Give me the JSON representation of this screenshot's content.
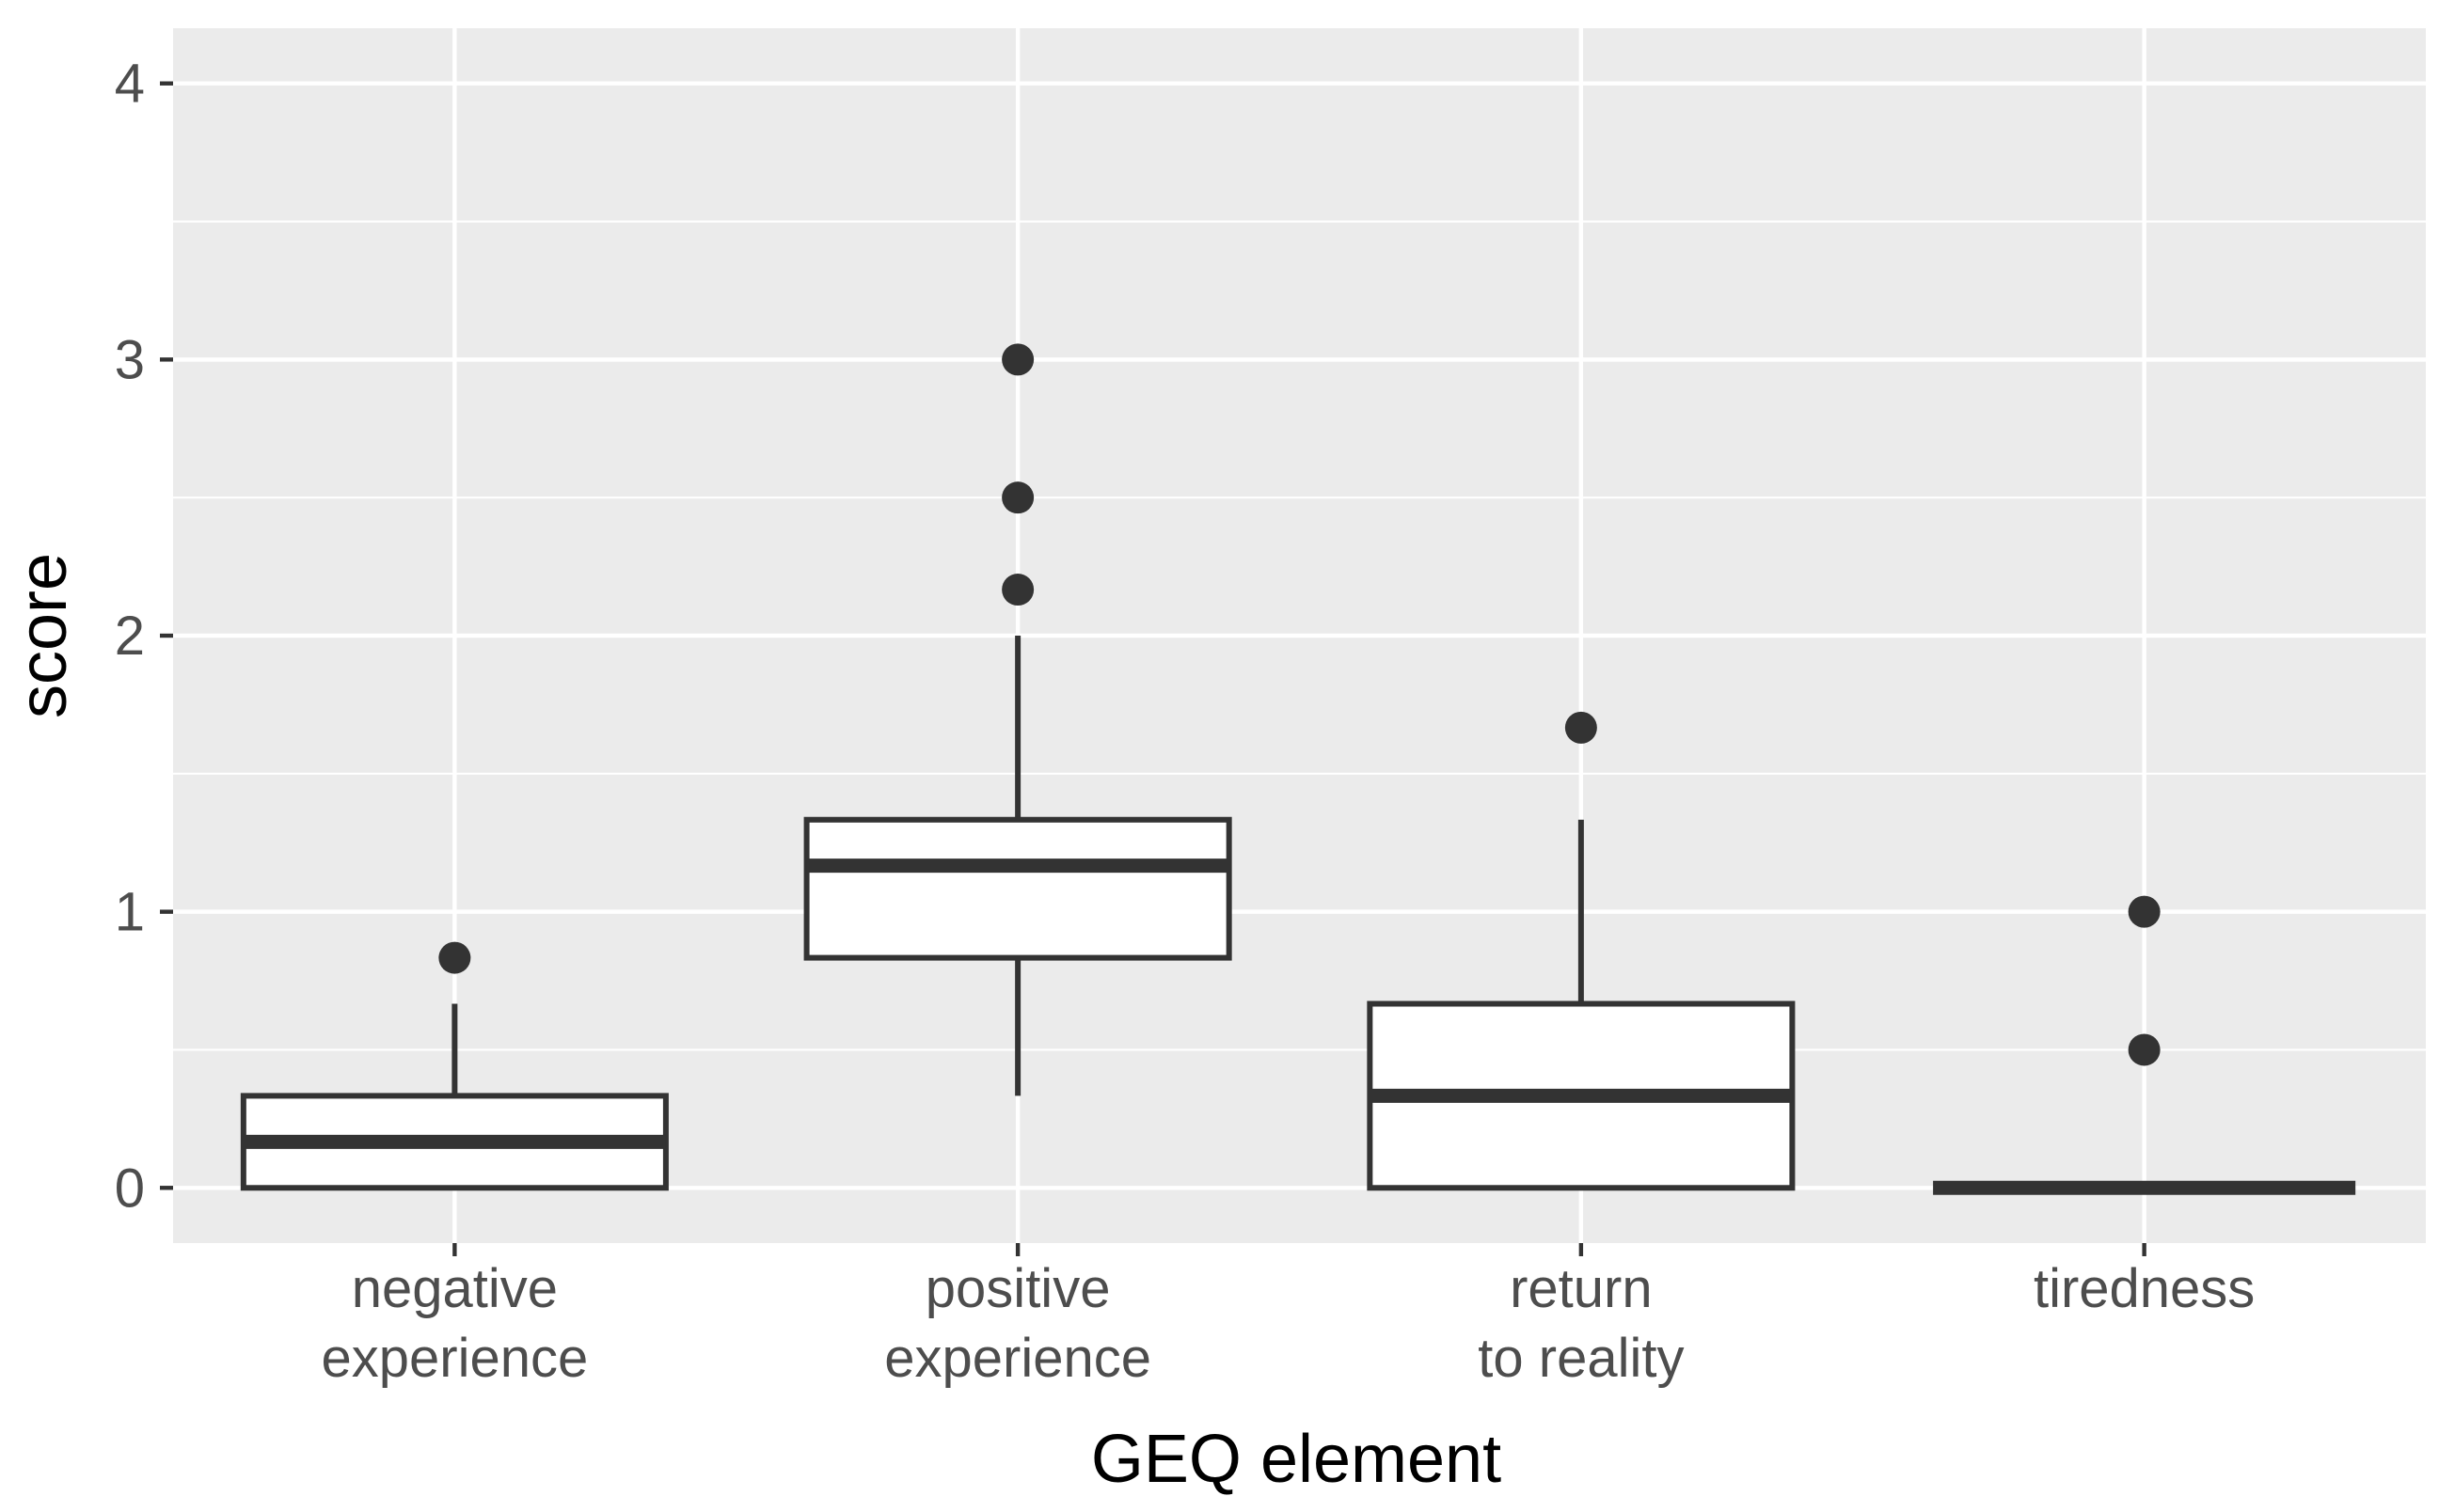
{
  "chart_data": {
    "type": "boxplot",
    "title": "",
    "xlabel": "GEQ element",
    "ylabel": "score",
    "ylim": [
      -0.2,
      4.2
    ],
    "yticks": [
      0,
      1,
      2,
      3,
      4
    ],
    "ytick_labels": [
      "0",
      "1",
      "2",
      "3",
      "4"
    ],
    "grid": true,
    "categories": [
      [
        "negative",
        "experience"
      ],
      [
        "positive",
        "experience"
      ],
      [
        "return",
        "to reality"
      ],
      [
        "tiredness"
      ]
    ],
    "boxes": [
      {
        "name": "negative experience",
        "lower_whisker": 0.0,
        "q1": 0.0,
        "median": 0.1667,
        "q3": 0.3333,
        "upper_whisker": 0.6667,
        "outliers": [
          0.8333
        ]
      },
      {
        "name": "positive experience",
        "lower_whisker": 0.3333,
        "q1": 0.8333,
        "median": 1.1667,
        "q3": 1.3333,
        "upper_whisker": 2.0,
        "outliers": [
          2.1667,
          2.5,
          3.0
        ]
      },
      {
        "name": "return to reality",
        "lower_whisker": 0.0,
        "q1": 0.0,
        "median": 0.3333,
        "q3": 0.6667,
        "upper_whisker": 1.3333,
        "outliers": [
          1.6667
        ]
      },
      {
        "name": "tiredness",
        "lower_whisker": 0.0,
        "q1": 0.0,
        "median": 0.0,
        "q3": 0.0,
        "upper_whisker": 0.0,
        "outliers": [
          0.5,
          1.0
        ]
      }
    ]
  }
}
